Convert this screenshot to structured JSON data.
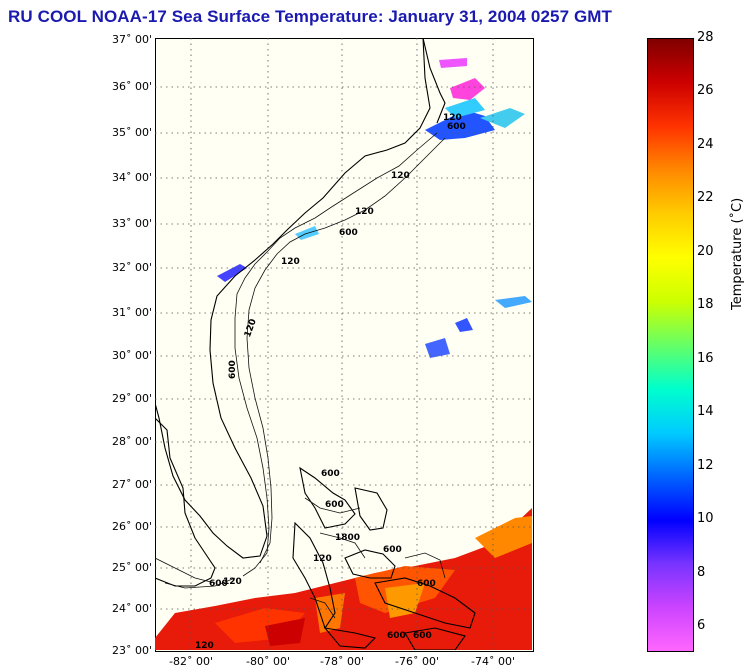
{
  "title": "RU COOL  NOAA-17  Sea Surface Temperature:  January 31, 2004 0257 GMT",
  "latitude_labels": [
    "37˚ 00'",
    "36˚ 00'",
    "35˚ 00'",
    "34˚ 00'",
    "33˚ 00'",
    "32˚ 00'",
    "31˚ 00'",
    "30˚ 00'",
    "29˚ 00'",
    "28˚ 00'",
    "27˚ 00'",
    "26˚ 00'",
    "25˚ 00'",
    "24˚ 00'",
    "23˚ 00'"
  ],
  "longitude_labels": [
    "-82˚ 00'",
    "-80˚ 00'",
    "-78˚ 00'",
    "-76˚ 00'",
    "-74˚ 00'"
  ],
  "colorbar": {
    "label": "Temperature (˚C)",
    "ticks": [
      "28",
      "26",
      "24",
      "22",
      "20",
      "18",
      "16",
      "14",
      "12",
      "10",
      "8",
      "6"
    ],
    "min": 5,
    "max": 28,
    "colors": [
      "#ff66ff",
      "#cc44ff",
      "#7733ff",
      "#0000ff",
      "#0066ff",
      "#00ccff",
      "#00ffcc",
      "#66ff66",
      "#ccff00",
      "#ffff00",
      "#ffcc00",
      "#ff8800",
      "#ff3300",
      "#cc0000",
      "#800000"
    ]
  },
  "contours": {
    "labels": [
      "120",
      "600",
      "120",
      "600",
      "120",
      "600",
      "120",
      "120",
      "600",
      "600",
      "600",
      "1800",
      "120",
      "600",
      "120",
      "600",
      "600",
      "120",
      "600"
    ]
  }
}
